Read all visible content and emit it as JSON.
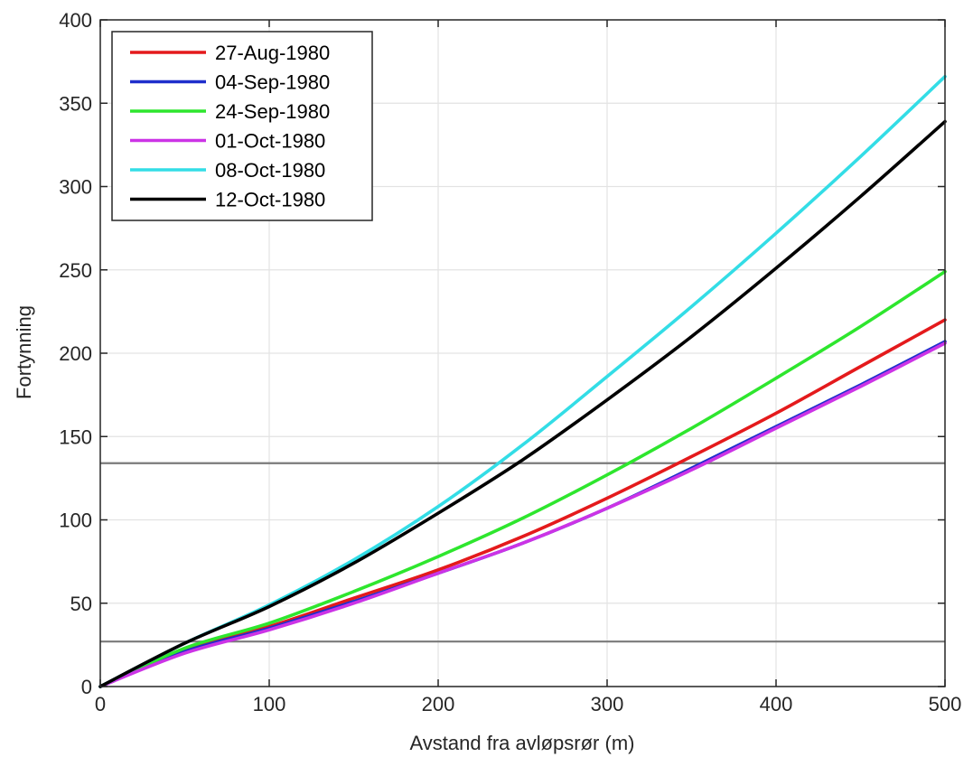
{
  "chart_data": {
    "type": "line",
    "title": "",
    "xlabel": "Avstand fra avløpsrør (m)",
    "ylabel": "Fortynning",
    "xlim": [
      0,
      500
    ],
    "ylim": [
      0,
      400
    ],
    "xticks": [
      0,
      100,
      200,
      300,
      400,
      500
    ],
    "yticks": [
      0,
      50,
      100,
      150,
      200,
      250,
      300,
      350,
      400
    ],
    "grid": true,
    "legend_position": "top-left",
    "reference_lines_y": [
      27,
      134
    ],
    "series": [
      {
        "name": "27-Aug-1980",
        "color": "#e41a1c",
        "x": [
          0,
          50,
          100,
          150,
          200,
          250,
          300,
          350,
          400,
          450,
          500
        ],
        "y": [
          0,
          22,
          36,
          53,
          70,
          90,
          113,
          138,
          164,
          192,
          220
        ]
      },
      {
        "name": "04-Sep-1980",
        "color": "#1f2fcc",
        "x": [
          0,
          50,
          100,
          150,
          200,
          250,
          300,
          350,
          400,
          450,
          500
        ],
        "y": [
          0,
          21,
          35,
          51,
          68,
          86,
          107,
          131,
          156,
          181,
          207
        ]
      },
      {
        "name": "24-Sep-1980",
        "color": "#2ee62e",
        "x": [
          0,
          50,
          100,
          150,
          200,
          250,
          300,
          350,
          400,
          450,
          500
        ],
        "y": [
          0,
          23,
          38,
          57,
          78,
          101,
          127,
          155,
          185,
          216,
          249
        ]
      },
      {
        "name": "01-Oct-1980",
        "color": "#cc33e6",
        "x": [
          0,
          50,
          100,
          150,
          200,
          250,
          300,
          350,
          400,
          450,
          500
        ],
        "y": [
          0,
          20,
          34,
          50,
          68,
          86,
          107,
          130,
          155,
          180,
          206
        ]
      },
      {
        "name": "08-Oct-1980",
        "color": "#33dde6",
        "x": [
          0,
          50,
          100,
          150,
          200,
          250,
          300,
          350,
          400,
          450,
          500
        ],
        "y": [
          0,
          26,
          49,
          76,
          108,
          145,
          186,
          228,
          272,
          318,
          366
        ]
      },
      {
        "name": "12-Oct-1980",
        "color": "#000000",
        "x": [
          0,
          50,
          100,
          150,
          200,
          250,
          300,
          350,
          400,
          450,
          500
        ],
        "y": [
          0,
          26,
          48,
          74,
          104,
          136,
          172,
          210,
          251,
          294,
          339
        ]
      }
    ]
  }
}
